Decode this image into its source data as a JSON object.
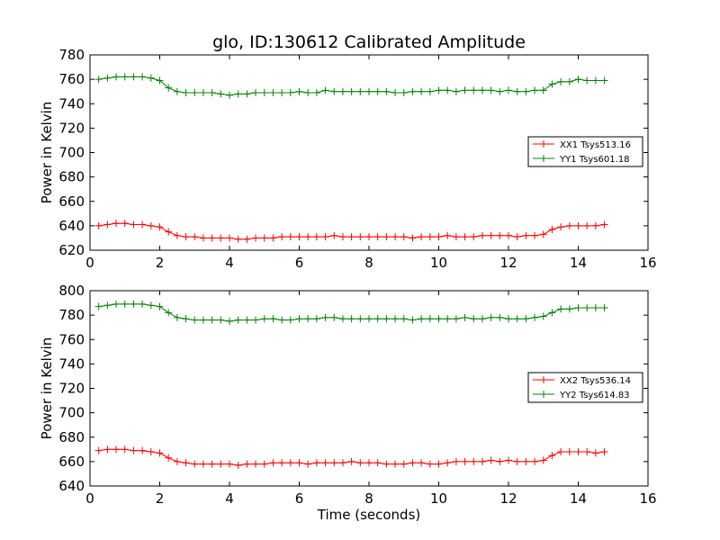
{
  "figure_title": "glo, ID:130612 Calibrated Amplitude",
  "colors": {
    "xx": "#ff0000",
    "yy": "#008000"
  },
  "chart_data": [
    {
      "type": "line",
      "title": "glo, ID:130612 Calibrated Amplitude",
      "xlabel": "",
      "ylabel": "Power in Kelvin",
      "xlim": [
        0,
        16
      ],
      "ylim": [
        620,
        780
      ],
      "xticks": [
        0,
        2,
        4,
        6,
        8,
        10,
        12,
        14,
        16
      ],
      "yticks": [
        620,
        640,
        660,
        680,
        700,
        720,
        740,
        760,
        780
      ],
      "grid": false,
      "legend_position": "center-right",
      "x": [
        0.25,
        0.5,
        0.75,
        1.0,
        1.25,
        1.5,
        1.75,
        2.0,
        2.25,
        2.5,
        2.75,
        3.0,
        3.25,
        3.5,
        3.75,
        4.0,
        4.25,
        4.5,
        4.75,
        5.0,
        5.25,
        5.5,
        5.75,
        6.0,
        6.25,
        6.5,
        6.75,
        7.0,
        7.25,
        7.5,
        7.75,
        8.0,
        8.25,
        8.5,
        8.75,
        9.0,
        9.25,
        9.5,
        9.75,
        10.0,
        10.25,
        10.5,
        10.75,
        11.0,
        11.25,
        11.5,
        11.75,
        12.0,
        12.25,
        12.5,
        12.75,
        13.0,
        13.25,
        13.5,
        13.75,
        14.0,
        14.25,
        14.5,
        14.75
      ],
      "series": [
        {
          "name": "XX1 Tsys513.16",
          "color": "#ff0000",
          "values": [
            640,
            641,
            642,
            642,
            641,
            641,
            640,
            639,
            635,
            632,
            631,
            631,
            630,
            630,
            630,
            630,
            629,
            629,
            630,
            630,
            630,
            631,
            631,
            631,
            631,
            631,
            631,
            632,
            631,
            631,
            631,
            631,
            631,
            631,
            631,
            631,
            630,
            631,
            631,
            631,
            632,
            631,
            631,
            631,
            632,
            632,
            632,
            632,
            631,
            632,
            632,
            633,
            637,
            639,
            640,
            640,
            640,
            640,
            641
          ]
        },
        {
          "name": "YY1 Tsys601.18",
          "color": "#008000",
          "values": [
            760,
            761,
            762,
            762,
            762,
            762,
            761,
            759,
            753,
            750,
            749,
            749,
            749,
            749,
            748,
            747,
            748,
            748,
            749,
            749,
            749,
            749,
            749,
            750,
            749,
            749,
            751,
            750,
            750,
            750,
            750,
            750,
            750,
            750,
            749,
            749,
            750,
            750,
            750,
            751,
            751,
            750,
            751,
            751,
            751,
            751,
            750,
            751,
            750,
            750,
            751,
            751,
            756,
            758,
            758,
            760,
            759,
            759,
            759
          ]
        }
      ]
    },
    {
      "type": "line",
      "title": "",
      "xlabel": "Time (seconds)",
      "ylabel": "Power in Kelvin",
      "xlim": [
        0,
        16
      ],
      "ylim": [
        640,
        800
      ],
      "xticks": [
        0,
        2,
        4,
        6,
        8,
        10,
        12,
        14,
        16
      ],
      "yticks": [
        640,
        660,
        680,
        700,
        720,
        740,
        760,
        780,
        800
      ],
      "grid": false,
      "legend_position": "center-right",
      "x": [
        0.25,
        0.5,
        0.75,
        1.0,
        1.25,
        1.5,
        1.75,
        2.0,
        2.25,
        2.5,
        2.75,
        3.0,
        3.25,
        3.5,
        3.75,
        4.0,
        4.25,
        4.5,
        4.75,
        5.0,
        5.25,
        5.5,
        5.75,
        6.0,
        6.25,
        6.5,
        6.75,
        7.0,
        7.25,
        7.5,
        7.75,
        8.0,
        8.25,
        8.5,
        8.75,
        9.0,
        9.25,
        9.5,
        9.75,
        10.0,
        10.25,
        10.5,
        10.75,
        11.0,
        11.25,
        11.5,
        11.75,
        12.0,
        12.25,
        12.5,
        12.75,
        13.0,
        13.25,
        13.5,
        13.75,
        14.0,
        14.25,
        14.5,
        14.75
      ],
      "series": [
        {
          "name": "XX2 Tsys536.14",
          "color": "#ff0000",
          "values": [
            669,
            670,
            670,
            670,
            669,
            669,
            668,
            667,
            663,
            660,
            659,
            658,
            658,
            658,
            658,
            658,
            657,
            658,
            658,
            658,
            659,
            659,
            659,
            659,
            658,
            659,
            659,
            659,
            659,
            660,
            659,
            659,
            659,
            658,
            658,
            658,
            659,
            659,
            658,
            658,
            659,
            660,
            660,
            660,
            660,
            661,
            660,
            661,
            660,
            660,
            660,
            661,
            665,
            668,
            668,
            668,
            668,
            667,
            668
          ]
        },
        {
          "name": "YY2 Tsys614.83",
          "color": "#008000",
          "values": [
            787,
            788,
            789,
            789,
            789,
            789,
            788,
            787,
            782,
            778,
            777,
            776,
            776,
            776,
            776,
            775,
            776,
            776,
            776,
            777,
            777,
            776,
            776,
            777,
            777,
            777,
            778,
            778,
            777,
            777,
            777,
            777,
            777,
            777,
            777,
            777,
            776,
            777,
            777,
            777,
            777,
            777,
            778,
            777,
            777,
            778,
            778,
            777,
            777,
            777,
            778,
            779,
            782,
            785,
            785,
            786,
            786,
            786,
            786
          ]
        }
      ]
    }
  ]
}
